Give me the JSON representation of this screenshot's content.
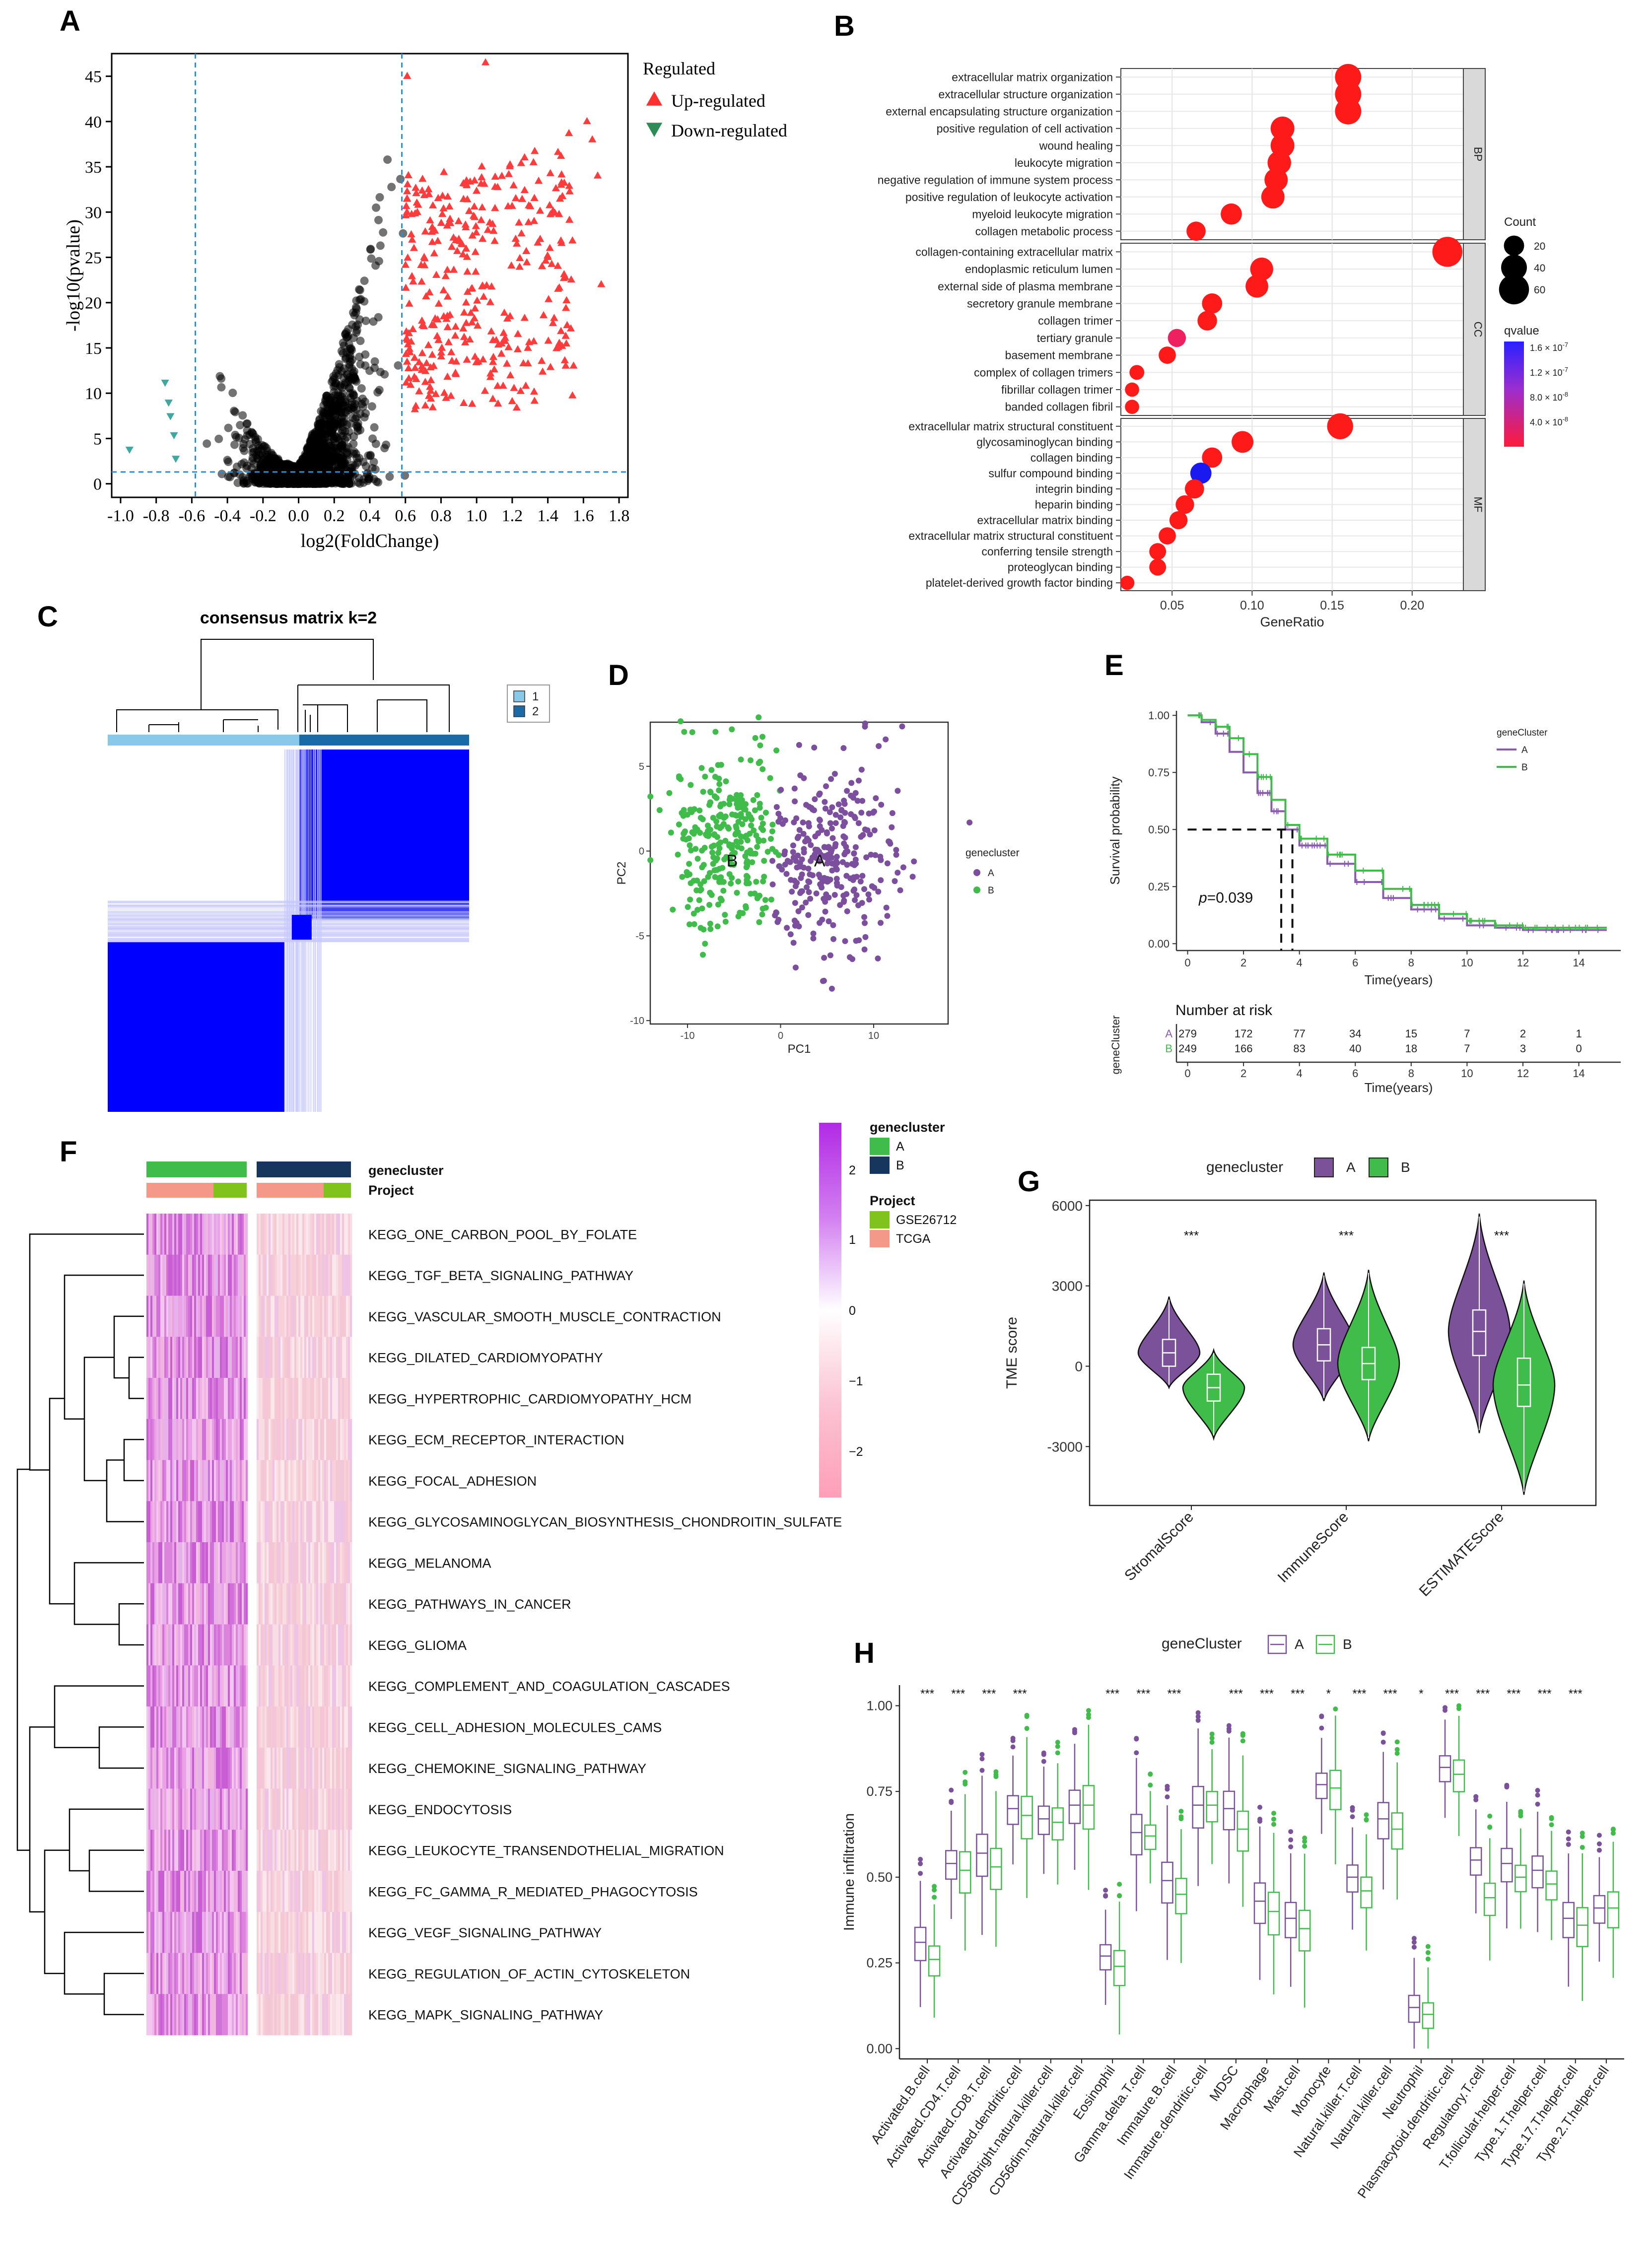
{
  "panel_letters": [
    "A",
    "B",
    "C",
    "D",
    "E",
    "F",
    "G",
    "H"
  ],
  "chart_data": [
    {
      "panel": "A",
      "type": "scatter",
      "xlabel": "log2(FoldChange)",
      "ylabel": "-log10(pvalue)",
      "xlim": [
        -1.05,
        1.85
      ],
      "ylim": [
        -1.5,
        47.5
      ],
      "x_ticks": [
        -1.0,
        -0.8,
        -0.6,
        -0.4,
        -0.2,
        0.0,
        0.2,
        0.4,
        0.6,
        0.8,
        1.0,
        1.2,
        1.4,
        1.6,
        1.8
      ],
      "x_tick_labels": [
        "-1.0",
        "-0.8",
        "-0.6",
        "-0.4",
        "-0.2",
        "0.0",
        "0.2",
        "0.4",
        "0.6",
        "0.8",
        "1.0",
        "1.2",
        "1.4",
        "1.6",
        "1.8"
      ],
      "y_ticks": [
        0,
        5,
        10,
        15,
        20,
        25,
        30,
        35,
        40,
        45
      ],
      "y_tick_labels": [
        "0",
        "5",
        "10",
        "15",
        "20",
        "25",
        "30",
        "35",
        "40",
        "45"
      ],
      "vlines": [
        -0.58,
        0.58
      ],
      "hline": 1.3,
      "legend_title": "Regulated",
      "legend": [
        "Up-regulated",
        "Down-regulated"
      ],
      "colors": {
        "up": "#ff3030",
        "down": "#2e8b57",
        "ns": "#000000"
      },
      "down_points": [
        [
          -0.95,
          3.8
        ],
        [
          -0.75,
          11.2
        ],
        [
          -0.72,
          7.5
        ],
        [
          -0.7,
          5.4
        ],
        [
          -0.73,
          9.0
        ],
        [
          -0.69,
          2.8
        ]
      ],
      "up_points_sample": [
        [
          1.05,
          46.5
        ],
        [
          0.61,
          45.0
        ],
        [
          1.62,
          40.0
        ],
        [
          1.65,
          38.0
        ],
        [
          1.68,
          34.0
        ],
        [
          1.7,
          22.0
        ],
        [
          1.22,
          31.5
        ],
        [
          0.9,
          27.0
        ],
        [
          1.4,
          25.0
        ]
      ]
    },
    {
      "panel": "B",
      "type": "scatter",
      "subtype": "dotplot",
      "xlabel": "GeneRatio",
      "x_ticks": [
        0.05,
        0.1,
        0.15,
        0.2
      ],
      "x_tick_labels": [
        "0.05",
        "0.10",
        "0.15",
        "0.20"
      ],
      "xlim": [
        0.018,
        0.232
      ],
      "legend_size_title": "Count",
      "legend_size_values": [
        "20",
        "40",
        "60"
      ],
      "legend_color_title": "qvalue",
      "legend_color_labels": [
        "1.6 × 10",
        "1.2 × 10",
        "8.0 × 10",
        "4.0 × 10"
      ],
      "legend_color_exponents": [
        "-7",
        "-7",
        "-8",
        "-8"
      ],
      "facets": [
        {
          "name": "BP",
          "terms": [
            {
              "label": "extracellular matrix organization",
              "ratio": 0.16,
              "count": 42,
              "q": 0
            },
            {
              "label": "extracellular structure organization",
              "ratio": 0.16,
              "count": 42,
              "q": 0
            },
            {
              "label": "external encapsulating structure organization",
              "ratio": 0.16,
              "count": 42,
              "q": 0
            },
            {
              "label": "positive regulation of cell activation",
              "ratio": 0.119,
              "count": 32,
              "q": 0
            },
            {
              "label": "wound healing",
              "ratio": 0.119,
              "count": 32,
              "q": 0
            },
            {
              "label": "leukocyte migration",
              "ratio": 0.117,
              "count": 31,
              "q": 0
            },
            {
              "label": "negative regulation of immune system process",
              "ratio": 0.115,
              "count": 30,
              "q": 0
            },
            {
              "label": "positive regulation of leukocyte activation",
              "ratio": 0.113,
              "count": 30,
              "q": 0
            },
            {
              "label": "myeloid leukocyte migration",
              "ratio": 0.087,
              "count": 23,
              "q": 0
            },
            {
              "label": "collagen metabolic process",
              "ratio": 0.065,
              "count": 17,
              "q": 0
            }
          ]
        },
        {
          "name": "CC",
          "terms": [
            {
              "label": "collagen-containing extracellular matrix",
              "ratio": 0.222,
              "count": 60,
              "q": 0
            },
            {
              "label": "endoplasmic reticulum lumen",
              "ratio": 0.106,
              "count": 29,
              "q": 0
            },
            {
              "label": "external side of plasma membrane",
              "ratio": 0.103,
              "count": 28,
              "q": 0
            },
            {
              "label": "secretory granule membrane",
              "ratio": 0.075,
              "count": 20,
              "q": 0
            },
            {
              "label": "collagen trimer",
              "ratio": 0.072,
              "count": 18,
              "q": 0
            },
            {
              "label": "tertiary granule",
              "ratio": 0.053,
              "count": 14,
              "q": 0.3
            },
            {
              "label": "basement membrane",
              "ratio": 0.047,
              "count": 12,
              "q": 0
            },
            {
              "label": "complex of collagen trimers",
              "ratio": 0.028,
              "count": 7,
              "q": 0
            },
            {
              "label": "fibrillar collagen trimer",
              "ratio": 0.025,
              "count": 6,
              "q": 0
            },
            {
              "label": "banded collagen fibril",
              "ratio": 0.025,
              "count": 6,
              "q": 0
            }
          ]
        },
        {
          "name": "MF",
          "terms": [
            {
              "label": "extracellular matrix structural constituent",
              "ratio": 0.155,
              "count": 41,
              "q": 0
            },
            {
              "label": "glycosaminoglycan binding",
              "ratio": 0.094,
              "count": 25,
              "q": 0
            },
            {
              "label": "collagen binding",
              "ratio": 0.075,
              "count": 20,
              "q": 0
            },
            {
              "label": "sulfur compound binding",
              "ratio": 0.068,
              "count": 23,
              "q": 1
            },
            {
              "label": "integrin binding",
              "ratio": 0.064,
              "count": 17,
              "q": 0
            },
            {
              "label": "heparin binding",
              "ratio": 0.058,
              "count": 15,
              "q": 0
            },
            {
              "label": "extracellular matrix binding",
              "ratio": 0.054,
              "count": 14,
              "q": 0
            },
            {
              "label": "extracellular matrix structural constituent",
              "ratio": 0.047,
              "count": 12,
              "q": 0
            },
            {
              "label": "conferring tensile strength",
              "ratio": 0.041,
              "count": 11,
              "q": 0
            },
            {
              "label": "proteoglycan binding",
              "ratio": 0.041,
              "count": 11,
              "q": 0
            },
            {
              "label": "platelet-derived growth factor binding",
              "ratio": 0.022,
              "count": 6,
              "q": 0
            }
          ]
        }
      ]
    },
    {
      "panel": "C",
      "type": "heatmap",
      "title": "consensus matrix k=2",
      "legend": [
        "1",
        "2"
      ],
      "colors": {
        "cluster1": "#88c8e8",
        "cluster2": "#1a6aa8",
        "fill": "#0000ff"
      },
      "cluster_fraction_1": 0.53
    },
    {
      "panel": "D",
      "type": "scatter",
      "xlabel": "PC1",
      "ylabel": "PC2",
      "x_ticks": [
        -10,
        0,
        10
      ],
      "x_tick_labels": [
        "-10",
        "0",
        "10"
      ],
      "y_ticks": [
        -10,
        -5,
        0,
        5
      ],
      "y_tick_labels": [
        "-10",
        "-5",
        "0",
        "5"
      ],
      "xlim": [
        -14,
        18
      ],
      "ylim": [
        -10.2,
        7.6
      ],
      "legend_title": "genecluster",
      "legend": [
        "A",
        "B"
      ],
      "cluster_labels": [
        "B",
        "A"
      ],
      "colors": {
        "A": "#7b4f9d",
        "B": "#3fbc4a"
      }
    },
    {
      "panel": "E",
      "type": "line",
      "xlabel": "Time(years)",
      "ylabel": "Survival probability",
      "x_ticks": [
        0,
        2,
        4,
        6,
        8,
        10,
        12,
        14
      ],
      "x_tick_labels": [
        "0",
        "2",
        "4",
        "6",
        "8",
        "10",
        "12",
        "14"
      ],
      "y_ticks": [
        0,
        0.25,
        0.5,
        0.75,
        1.0
      ],
      "y_tick_labels": [
        "0.00",
        "0.25",
        "0.50",
        "0.75",
        "1.00"
      ],
      "legend_title": "geneCluster",
      "legend": [
        "A",
        "B"
      ],
      "pvalue": "=0.039",
      "series": [
        {
          "name": "A",
          "color": "#8a5bb0",
          "x": [
            0,
            0.5,
            1,
            1.5,
            2,
            2.5,
            3,
            3.5,
            4,
            5,
            6,
            7,
            8,
            9,
            10,
            11,
            12,
            13,
            14,
            15
          ],
          "y": [
            1,
            0.97,
            0.92,
            0.84,
            0.75,
            0.66,
            0.58,
            0.5,
            0.43,
            0.35,
            0.27,
            0.2,
            0.15,
            0.11,
            0.08,
            0.07,
            0.06,
            0.06,
            0.06,
            0.06
          ]
        },
        {
          "name": "B",
          "color": "#3fbc4a",
          "x": [
            0,
            0.5,
            1,
            1.5,
            2,
            2.5,
            3,
            3.5,
            4,
            5,
            6,
            7,
            8,
            9,
            10,
            11,
            12,
            13,
            14,
            15
          ],
          "y": [
            1,
            0.98,
            0.95,
            0.9,
            0.83,
            0.73,
            0.63,
            0.52,
            0.46,
            0.39,
            0.32,
            0.24,
            0.17,
            0.13,
            0.1,
            0.08,
            0.07,
            0.07,
            0.07,
            0.07
          ]
        }
      ],
      "risk_title": "Number at risk",
      "risk_ylabel": "geneCluster",
      "risk_rows": [
        {
          "label": "A",
          "values": [
            "279",
            "172",
            "77",
            "34",
            "15",
            "7",
            "2",
            "1"
          ]
        },
        {
          "label": "B",
          "values": [
            "249",
            "166",
            "83",
            "40",
            "18",
            "7",
            "3",
            "0"
          ]
        }
      ]
    },
    {
      "panel": "F",
      "type": "heatmap",
      "annot_labels": [
        "genecluster",
        "Project"
      ],
      "rows": [
        "KEGG_ONE_CARBON_POOL_BY_FOLATE",
        "KEGG_TGF_BETA_SIGNALING_PATHWAY",
        "KEGG_VASCULAR_SMOOTH_MUSCLE_CONTRACTION",
        "KEGG_DILATED_CARDIOMYOPATHY",
        "KEGG_HYPERTROPHIC_CARDIOMYOPATHY_HCM",
        "KEGG_ECM_RECEPTOR_INTERACTION",
        "KEGG_FOCAL_ADHESION",
        "KEGG_GLYCOSAMINOGLYCAN_BIOSYNTHESIS_CHONDROITIN_SULFATE",
        "KEGG_MELANOMA",
        "KEGG_PATHWAYS_IN_CANCER",
        "KEGG_GLIOMA",
        "KEGG_COMPLEMENT_AND_COAGULATION_CASCADES",
        "KEGG_CELL_ADHESION_MOLECULES_CAMS",
        "KEGG_CHEMOKINE_SIGNALING_PATHWAY",
        "KEGG_ENDOCYTOSIS",
        "KEGG_LEUKOCYTE_TRANSENDOTHELIAL_MIGRATION",
        "KEGG_FC_GAMMA_R_MEDIATED_PHAGOCYTOSIS",
        "KEGG_VEGF_SIGNALING_PATHWAY",
        "KEGG_REGULATION_OF_ACTIN_CYTOSKELETON",
        "KEGG_MAPK_SIGNALING_PATHWAY"
      ],
      "color_scale_ticks": [
        "2",
        "1",
        "0",
        "−1",
        "−2"
      ],
      "legend_genecluster_title": "genecluster",
      "legend_genecluster": [
        "A",
        "B"
      ],
      "legend_project_title": "Project",
      "legend_project": [
        "GSE26712",
        "TCGA"
      ],
      "colors": {
        "A": "#3fbc4a",
        "B": "#17365d",
        "GSE26712": "#7fc31c",
        "TCGA": "#f4988a"
      }
    },
    {
      "panel": "G",
      "type": "violin",
      "ylabel": "TME score",
      "categories": [
        "StromalScore",
        "ImmuneScore",
        "ESTIMATEScore"
      ],
      "y_ticks": [
        -3000,
        0,
        3000,
        6000
      ],
      "y_tick_labels": [
        "-3000",
        "0",
        "3000",
        "6000"
      ],
      "ylim": [
        -5200,
        6200
      ],
      "legend_title": "genecluster",
      "legend": [
        "A",
        "B"
      ],
      "significance": [
        "***",
        "***",
        "***"
      ],
      "colors": {
        "A": "#7b5199",
        "B": "#3fbc4a"
      },
      "series": [
        {
          "name": "A",
          "medians": [
            500,
            800,
            1300
          ],
          "q1": [
            0,
            200,
            400
          ],
          "q3": [
            1000,
            1400,
            2100
          ],
          "min": [
            -800,
            -1300,
            -2500
          ],
          "max": [
            2600,
            3500,
            5700
          ]
        },
        {
          "name": "B",
          "medians": [
            -800,
            100,
            -700
          ],
          "q1": [
            -1300,
            -500,
            -1500
          ],
          "q3": [
            -300,
            700,
            300
          ],
          "min": [
            -2700,
            -2800,
            -4800
          ],
          "max": [
            600,
            3600,
            3200
          ]
        }
      ]
    },
    {
      "panel": "H",
      "type": "bar",
      "subtype": "boxplot",
      "ylabel": "Immune infiltration",
      "legend_title": "geneCluster",
      "legend": [
        "A",
        "B"
      ],
      "y_ticks": [
        0,
        0.25,
        0.5,
        0.75,
        1.0
      ],
      "y_tick_labels": [
        "0.00",
        "0.25",
        "0.50",
        "0.75",
        "1.00"
      ],
      "ylim": [
        -0.03,
        1.06
      ],
      "colors": {
        "A": "#7b5199",
        "B": "#3fbc4a"
      },
      "categories": [
        "Activated.B.cell",
        "Activated.CD4.T.cell",
        "Activated.CD8.T.cell",
        "Activated.dendritic.cell",
        "CD56bright.natural.killer.cell",
        "CD56dim.natural.killer.cell",
        "Eosinophil",
        "Gamma.delta.T.cell",
        "Immature.B.cell",
        "Immature.dendritic.cell",
        "MDSC",
        "Macrophage",
        "Mast.cell",
        "Monocyte",
        "Natural.killer.T.cell",
        "Natural.killer.cell",
        "Neutrophil",
        "Plasmacytoid.dendritic.cell",
        "Regulatory.T.cell",
        "T.follicular.helper.cell",
        "Type.1.T.helper.cell",
        "Type.17.T.helper.cell",
        "Type.2.T.helper.cell"
      ],
      "significance": [
        "***",
        "***",
        "***",
        "***",
        "",
        "",
        "***",
        "***",
        "***",
        "",
        "***",
        "***",
        "***",
        "*",
        "***",
        "***",
        "*",
        "***",
        "***",
        "***",
        "***",
        "***",
        ""
      ],
      "series": [
        {
          "name": "A",
          "medians": [
            0.31,
            0.54,
            0.57,
            0.7,
            0.67,
            0.71,
            0.27,
            0.63,
            0.49,
            0.71,
            0.7,
            0.43,
            0.38,
            0.77,
            0.5,
            0.67,
            0.12,
            0.82,
            0.55,
            0.54,
            0.52,
            0.38,
            0.41
          ]
        },
        {
          "name": "B",
          "medians": [
            0.26,
            0.52,
            0.53,
            0.68,
            0.66,
            0.71,
            0.24,
            0.62,
            0.45,
            0.71,
            0.64,
            0.4,
            0.35,
            0.76,
            0.46,
            0.64,
            0.1,
            0.8,
            0.44,
            0.5,
            0.48,
            0.36,
            0.41
          ]
        }
      ]
    }
  ]
}
